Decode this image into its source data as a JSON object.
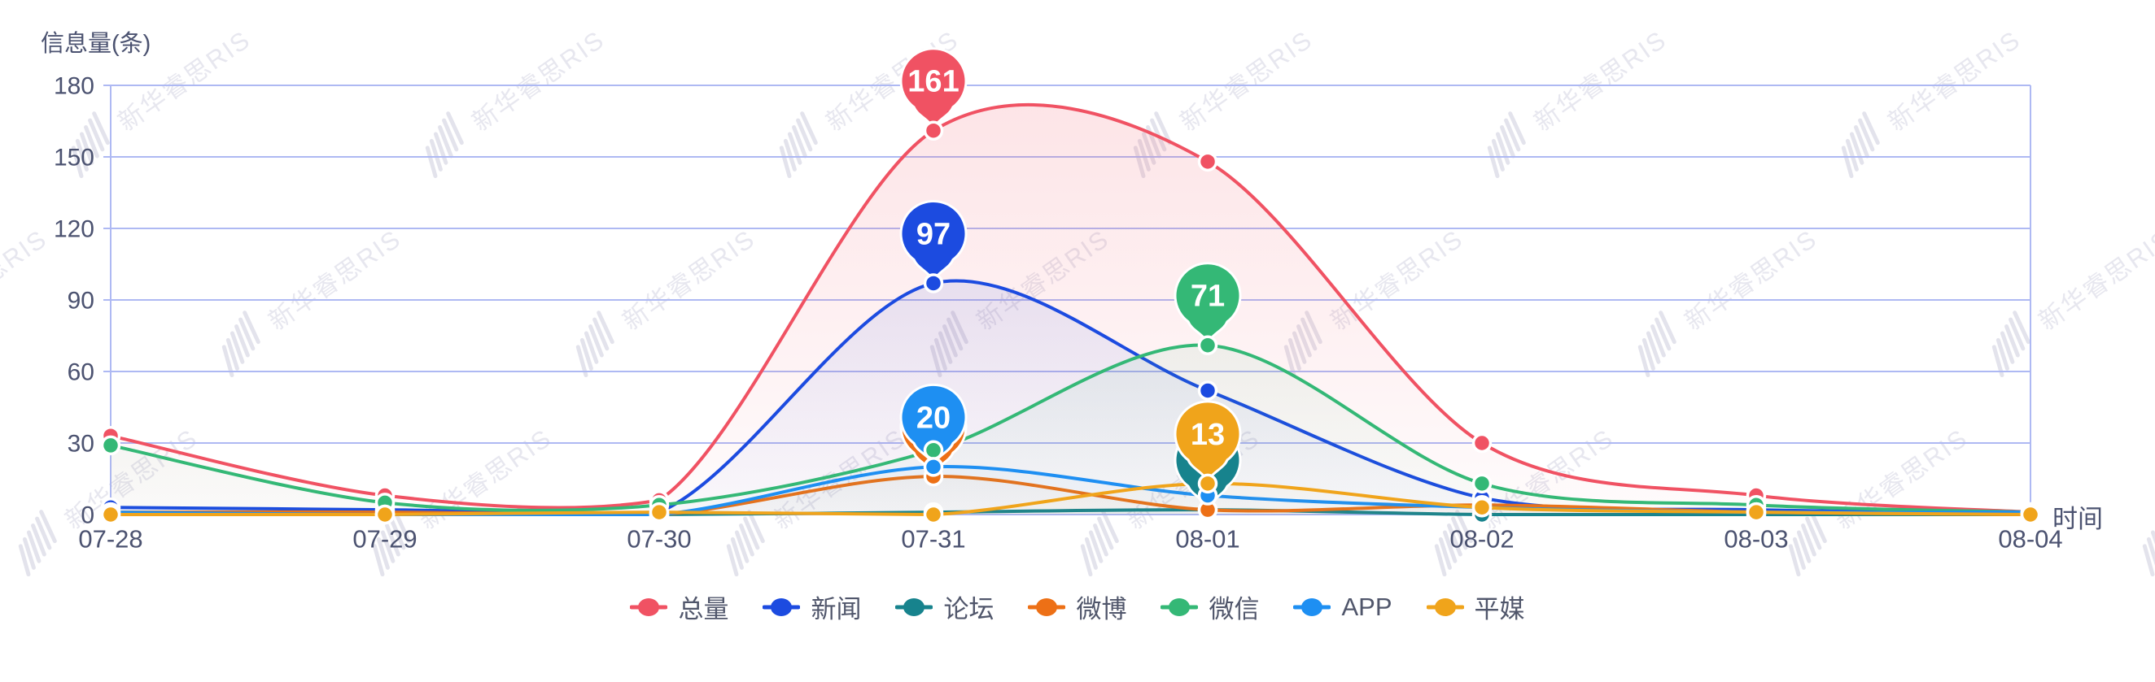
{
  "watermark": {
    "text": "新华睿思RIS"
  },
  "colors": {
    "background": "#ffffff",
    "grid": "#aeb9f3",
    "axis_text": "#4b5270",
    "legend_text": "#50566b",
    "pin_label": "#ffffff"
  },
  "chart_data": {
    "type": "line",
    "smooth": true,
    "grid": true,
    "legend_position": "bottom",
    "title": "",
    "ylabel": "信息量(条)",
    "xlabel": "时间",
    "ylim": [
      0,
      180
    ],
    "yticks": [
      0,
      30,
      60,
      90,
      120,
      150,
      180
    ],
    "categories": [
      "07-28",
      "07-29",
      "07-30",
      "07-31",
      "08-01",
      "08-02",
      "08-03",
      "08-04"
    ],
    "series": [
      {
        "name": "总量",
        "color": "#f05263",
        "values": [
          33,
          8,
          6,
          161,
          148,
          30,
          8,
          1
        ],
        "max_pin": {
          "value": 161,
          "index": 3
        }
      },
      {
        "name": "新闻",
        "color": "#1c4be0",
        "values": [
          3,
          2,
          1,
          97,
          52,
          7,
          2,
          1
        ],
        "max_pin": {
          "value": 97,
          "index": 3
        }
      },
      {
        "name": "论坛",
        "color": "#17838d",
        "values": [
          0,
          0,
          0,
          1,
          2,
          0,
          0,
          0
        ],
        "max_pin": {
          "value": 2,
          "index": 4
        }
      },
      {
        "name": "微博",
        "color": "#ed7016",
        "values": [
          1,
          1,
          0,
          16,
          2,
          4,
          1,
          0
        ],
        "max_pin": {
          "value": 16,
          "index": 3
        }
      },
      {
        "name": "微信",
        "color": "#34b876",
        "values": [
          29,
          5,
          4,
          27,
          71,
          13,
          4,
          1
        ],
        "max_pin": {
          "value": 71,
          "index": 4
        }
      },
      {
        "name": "APP",
        "color": "#1e8ff2",
        "values": [
          1,
          0,
          0,
          20,
          8,
          3,
          1,
          1
        ],
        "max_pin": {
          "value": 20,
          "index": 3
        }
      },
      {
        "name": "平媒",
        "color": "#f0a41b",
        "values": [
          0,
          0,
          1,
          0,
          13,
          3,
          1,
          0
        ],
        "max_pin": {
          "value": 13,
          "index": 4
        }
      }
    ]
  }
}
